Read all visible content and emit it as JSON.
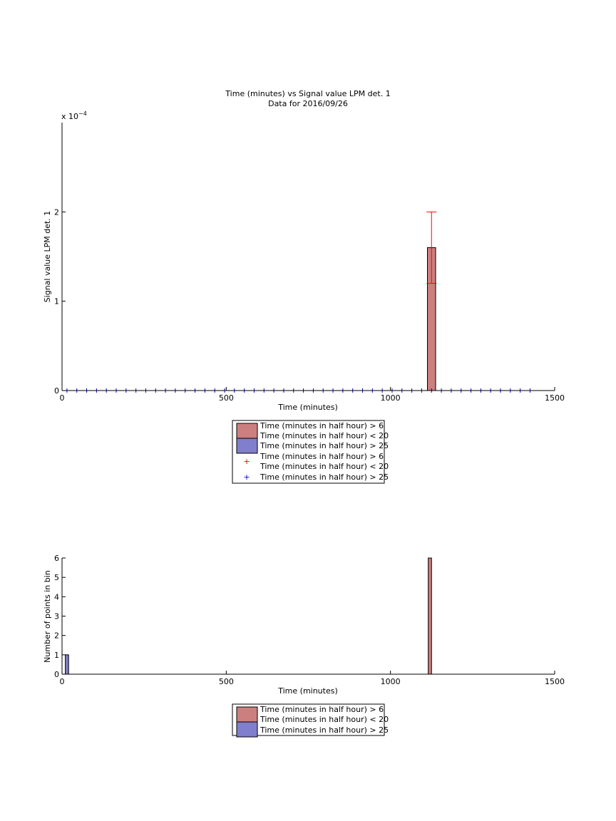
{
  "charts": {
    "top": {
      "title_line1": "Time (minutes) vs Signal value LPM det. 1",
      "title_line2": "Data for 2016/09/26",
      "xlabel": "Time (minutes)",
      "ylabel": "Signal value LPM det. 1",
      "exponent_base": "x 10",
      "exponent_power": "−4",
      "legend": [
        {
          "label_line1": "Time (minutes in half hour) > 6",
          "label_line2": "Time (minutes in half hour) < 20"
        },
        {
          "label_line1": "Time (minutes in half hour) > 25"
        },
        {
          "label_line1": "Time (minutes in half hour) > 6",
          "label_line2": "Time (minutes in half hour) < 20"
        },
        {
          "label_line1": "Time (minutes in half hour) > 25"
        }
      ]
    },
    "bottom": {
      "xlabel": "Time (minutes)",
      "ylabel": "Number of points in bin",
      "legend": [
        {
          "label_line1": "Time (minutes in half hour) > 6",
          "label_line2": "Time (minutes in half hour) < 20"
        },
        {
          "label_line1": "Time (minutes in half hour) > 25"
        }
      ]
    }
  },
  "chart_data": [
    {
      "type": "bar",
      "title": "Time (minutes) vs Signal value LPM det. 1 / Data for 2016/09/26",
      "xlabel": "Time (minutes)",
      "ylabel": "Signal value LPM det. 1",
      "xlim": [
        0,
        1500
      ],
      "ylim": [
        0,
        0.0003
      ],
      "x_ticks": [
        0,
        500,
        1000,
        1500
      ],
      "y_ticks": [
        0,
        1,
        2
      ],
      "y_scale_note": "x 10^-4",
      "series": [
        {
          "name": "Time (minutes in half hour) > 6 / Time (minutes in half hour) < 20",
          "kind": "bar",
          "color": "#cc7f7f",
          "points": [
            {
              "x": 1125,
              "y": 0.00016,
              "width": 25
            }
          ]
        },
        {
          "name": "Time (minutes in half hour) > 25",
          "kind": "bar",
          "color": "#7f7fcc",
          "points": []
        },
        {
          "name": "Time (minutes in half hour) > 6 / Time (minutes in half hour) < 20",
          "kind": "errorbar",
          "color": "#ff0000",
          "points": [
            {
              "x": 1125,
              "y": 0.00016,
              "err": 4e-05
            }
          ]
        },
        {
          "name": "Time (minutes in half hour) > 25",
          "kind": "scatter",
          "color": "#0000cc",
          "x": [
            15,
            45,
            75,
            105,
            135,
            165,
            195,
            225,
            255,
            285,
            315,
            345,
            375,
            405,
            435,
            465,
            495,
            525,
            555,
            585,
            615,
            645,
            675,
            705,
            735,
            765,
            795,
            825,
            855,
            885,
            915,
            945,
            975,
            1005,
            1035,
            1065,
            1095,
            1125,
            1155,
            1185,
            1215,
            1245,
            1275,
            1305,
            1335,
            1365,
            1395,
            1425
          ],
          "y_all": 0
        }
      ],
      "legend_position": "below"
    },
    {
      "type": "bar",
      "xlabel": "Time (minutes)",
      "ylabel": "Number of points in bin",
      "xlim": [
        0,
        1500
      ],
      "ylim": [
        0,
        6
      ],
      "x_ticks": [
        0,
        500,
        1000,
        1500
      ],
      "y_ticks": [
        0,
        1,
        2,
        3,
        4,
        5,
        6
      ],
      "series": [
        {
          "name": "Time (minutes in half hour) > 6 / Time (minutes in half hour) < 20",
          "color": "#cc7f7f",
          "points": [
            {
              "x": 1120,
              "y": 6,
              "width": 10
            }
          ]
        },
        {
          "name": "Time (minutes in half hour) > 25",
          "color": "#7f7fcc",
          "points": [
            {
              "x": 15,
              "y": 1,
              "width": 10
            }
          ]
        }
      ],
      "legend_position": "below"
    }
  ]
}
